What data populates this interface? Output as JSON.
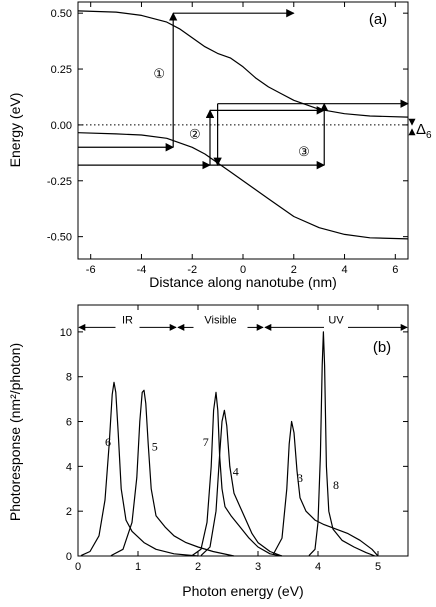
{
  "chart_data": [
    {
      "type": "line",
      "panel_label": "(a)",
      "xlabel": "Distance along nanotube (nm)",
      "ylabel": "Energy  (eV)",
      "xlim": [
        -6.5,
        6.5
      ],
      "ylim": [
        -0.6,
        0.55
      ],
      "x_ticks": [
        -6,
        -4,
        -2,
        0,
        2,
        4,
        6
      ],
      "y_ticks": [
        -0.5,
        -0.25,
        0.0,
        0.25,
        0.5
      ],
      "x_tick_labels": [
        "-6",
        "-4",
        "-2",
        "0",
        "2",
        "4",
        "6"
      ],
      "y_tick_labels": [
        "-0.50",
        "-0.25",
        "0.00",
        "0.25",
        "0.50"
      ],
      "grid": false,
      "series": [
        {
          "role": "conduction-band",
          "x": [
            -6.5,
            -5,
            -4,
            -3,
            -2.5,
            -2,
            -1.5,
            -1,
            -0.5,
            0,
            0.5,
            1,
            1.5,
            2,
            2.5,
            3,
            4,
            5,
            6.5
          ],
          "y": [
            0.51,
            0.505,
            0.49,
            0.46,
            0.43,
            0.39,
            0.35,
            0.32,
            0.3,
            0.26,
            0.21,
            0.17,
            0.14,
            0.11,
            0.09,
            0.07,
            0.05,
            0.04,
            0.035
          ]
        },
        {
          "role": "valence-band",
          "x": [
            -6.5,
            -5,
            -4,
            -3,
            -2,
            -1.5,
            -1,
            -0.5,
            0,
            0.5,
            1,
            1.5,
            2,
            3,
            4,
            5,
            6.5
          ],
          "y": [
            -0.035,
            -0.04,
            -0.045,
            -0.06,
            -0.1,
            -0.13,
            -0.17,
            -0.21,
            -0.25,
            -0.29,
            -0.33,
            -0.37,
            -0.41,
            -0.46,
            -0.49,
            -0.505,
            -0.51
          ]
        },
        {
          "role": "fermi-level",
          "style": "dotted",
          "x": [
            -6.5,
            6.5
          ],
          "y": [
            0.0,
            0.0
          ]
        }
      ],
      "arrows": [
        {
          "from": [
            -6.5,
            -0.1
          ],
          "to": [
            -2.75,
            -0.1
          ]
        },
        {
          "from": [
            -2.75,
            -0.1
          ],
          "to": [
            -2.75,
            0.5
          ]
        },
        {
          "from": [
            -2.75,
            0.5
          ],
          "to": [
            2.0,
            0.5
          ]
        },
        {
          "from": [
            -6.5,
            -0.18
          ],
          "to": [
            -1.3,
            -0.18
          ]
        },
        {
          "from": [
            -1.3,
            -0.18
          ],
          "to": [
            -1.3,
            0.065
          ]
        },
        {
          "from": [
            -1.3,
            0.065
          ],
          "to": [
            3.2,
            0.065
          ]
        },
        {
          "from": [
            -1.3,
            -0.18
          ],
          "to": [
            3.2,
            -0.18
          ]
        },
        {
          "from": [
            3.2,
            -0.18
          ],
          "to": [
            3.2,
            0.095
          ]
        },
        {
          "from": [
            -1.0,
            0.095
          ],
          "to": [
            6.5,
            0.095
          ]
        },
        {
          "from": [
            -1.0,
            0.095
          ],
          "to": [
            -1.0,
            -0.18
          ]
        }
      ],
      "annotations": [
        {
          "text": "①",
          "x": -3.3,
          "y": 0.21
        },
        {
          "text": "②",
          "x": -1.9,
          "y": -0.06
        },
        {
          "text": "③",
          "x": 2.4,
          "y": -0.14
        }
      ],
      "delta_label": {
        "text": "Δ",
        "subscript": "6"
      }
    },
    {
      "type": "line",
      "panel_label": "(b)",
      "xlabel": "Photon energy  (eV)",
      "ylabel": "Photoresponse  (nm²/photon)",
      "xlim": [
        0,
        5.5
      ],
      "ylim": [
        0,
        11.2
      ],
      "x_ticks": [
        0,
        1,
        2,
        3,
        4,
        5
      ],
      "y_ticks": [
        0,
        2,
        4,
        6,
        8,
        10
      ],
      "x_tick_labels": [
        "0",
        "1",
        "2",
        "3",
        "4",
        "5"
      ],
      "y_tick_labels": [
        "0",
        "2",
        "4",
        "6",
        "8",
        "10"
      ],
      "grid": false,
      "ranges": [
        {
          "text": "IR",
          "from": 0,
          "to": 1.65
        },
        {
          "text": "Visible",
          "from": 1.65,
          "to": 3.1
        },
        {
          "text": "UV",
          "from": 3.1,
          "to": 5.5
        }
      ],
      "range_y": 10.2,
      "series": [
        {
          "name": "6",
          "label_at": [
            0.5,
            4.9
          ],
          "x": [
            0.05,
            0.2,
            0.35,
            0.45,
            0.52,
            0.57,
            0.6,
            0.63,
            0.67,
            0.72,
            0.8,
            0.9,
            1.1,
            1.3,
            1.6,
            2.0
          ],
          "y": [
            0.02,
            0.2,
            0.9,
            2.5,
            5.0,
            7.2,
            7.75,
            7.3,
            5.5,
            3.0,
            1.6,
            1.1,
            0.6,
            0.3,
            0.1,
            0.0
          ]
        },
        {
          "name": "5",
          "label_at": [
            1.28,
            4.7
          ],
          "x": [
            0.55,
            0.75,
            0.9,
            0.98,
            1.03,
            1.07,
            1.1,
            1.13,
            1.17,
            1.22,
            1.3,
            1.45,
            1.6,
            1.8,
            2.0,
            2.25,
            2.6
          ],
          "y": [
            0.02,
            0.3,
            1.5,
            3.5,
            6.0,
            7.3,
            7.4,
            6.8,
            5.0,
            3.0,
            1.8,
            1.3,
            0.9,
            0.6,
            0.4,
            0.2,
            0.0
          ]
        },
        {
          "name": "7",
          "label_at": [
            2.13,
            4.9
          ],
          "x": [
            1.9,
            2.05,
            2.15,
            2.22,
            2.26,
            2.3,
            2.33,
            2.36,
            2.4,
            2.45,
            2.55,
            2.7,
            2.85,
            3.0,
            3.2,
            3.4
          ],
          "y": [
            0.02,
            0.3,
            1.5,
            4.0,
            6.5,
            7.3,
            6.5,
            4.5,
            3.0,
            2.2,
            1.8,
            1.3,
            0.8,
            0.4,
            0.1,
            0.0
          ]
        },
        {
          "name": "4",
          "label_at": [
            2.63,
            3.6
          ],
          "x": [
            2.05,
            2.2,
            2.3,
            2.36,
            2.4,
            2.44,
            2.48,
            2.53,
            2.6,
            2.7,
            2.8,
            2.9,
            3.0,
            3.2,
            3.4
          ],
          "y": [
            0.02,
            0.4,
            2.0,
            4.5,
            6.0,
            6.5,
            5.8,
            4.0,
            2.8,
            2.2,
            1.6,
            1.0,
            0.6,
            0.2,
            0.0
          ]
        },
        {
          "name": "3",
          "label_at": [
            3.7,
            3.3
          ],
          "x": [
            3.25,
            3.4,
            3.48,
            3.52,
            3.56,
            3.6,
            3.65,
            3.7,
            3.8,
            3.95,
            4.1,
            4.3,
            4.5,
            4.7,
            4.9,
            5.0
          ],
          "y": [
            0.05,
            0.8,
            3.0,
            5.0,
            6.0,
            5.5,
            3.8,
            2.6,
            2.0,
            1.6,
            1.4,
            1.2,
            1.0,
            0.7,
            0.3,
            0.0
          ]
        },
        {
          "name": "8",
          "label_at": [
            4.3,
            3.0
          ],
          "x": [
            3.85,
            3.95,
            4.0,
            4.04,
            4.07,
            4.09,
            4.11,
            4.14,
            4.18,
            4.25,
            4.4,
            4.6,
            4.8,
            4.95
          ],
          "y": [
            0.02,
            0.3,
            1.5,
            4.5,
            8.5,
            10.0,
            8.5,
            4.0,
            2.0,
            1.2,
            0.7,
            0.4,
            0.15,
            0.0
          ]
        }
      ]
    }
  ]
}
